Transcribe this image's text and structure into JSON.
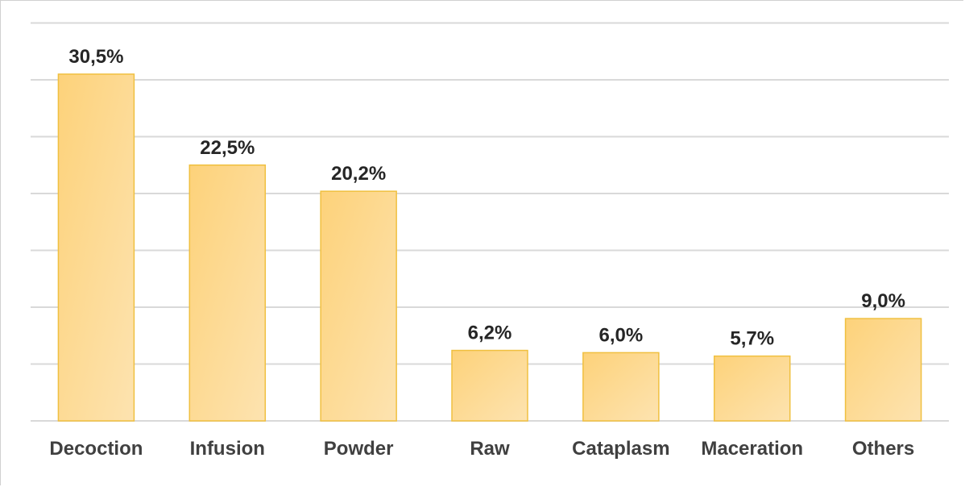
{
  "chart_data": {
    "type": "bar",
    "categories": [
      "Decoction",
      "Infusion",
      "Powder",
      "Raw",
      "Cataplasm",
      "Maceration",
      "Others"
    ],
    "values": [
      30.5,
      22.5,
      20.2,
      6.2,
      6.0,
      5.7,
      9.0
    ],
    "data_labels": [
      "30,5%",
      "22,5%",
      "20,2%",
      "6,2%",
      "6,0%",
      "5,7%",
      "9,0%"
    ],
    "title": "",
    "xlabel": "",
    "ylabel": "",
    "ylim": [
      0,
      35
    ],
    "grid": true,
    "y_axis_visible": false,
    "legend": "none",
    "colors": {
      "bar_fill_start": "#fdd27a",
      "bar_fill_end": "#fde3b0",
      "bar_stroke": "#f0c040",
      "grid": "#d9d9d9",
      "label": "#262626",
      "tick": "#404040"
    }
  }
}
